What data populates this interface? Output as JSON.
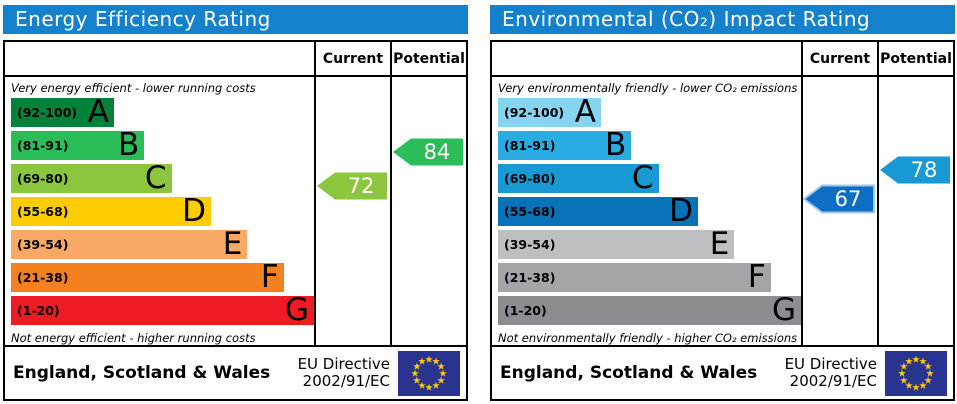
{
  "colors": {
    "header_bg": "#1580cc",
    "flag_bg": "#28348f",
    "flag_star": "#ffcc00",
    "border": "#000000"
  },
  "panels": [
    {
      "title": "Energy Efficiency Rating",
      "header": {
        "current": "Current",
        "potential": "Potential"
      },
      "top_caption": "Very energy efficient - lower running costs",
      "bottom_caption": "Not energy efficient - higher running costs",
      "bands": [
        {
          "letter": "A",
          "range": "(92-100)",
          "min": 92,
          "max": 100,
          "color": "#00823b",
          "width_pct": 34
        },
        {
          "letter": "B",
          "range": "(81-91)",
          "min": 81,
          "max": 91,
          "color": "#2bbe58",
          "width_pct": 44
        },
        {
          "letter": "C",
          "range": "(69-80)",
          "min": 69,
          "max": 80,
          "color": "#8cc63f",
          "width_pct": 53
        },
        {
          "letter": "D",
          "range": "(55-68)",
          "min": 55,
          "max": 68,
          "color": "#ffcc00",
          "width_pct": 66
        },
        {
          "letter": "E",
          "range": "(39-54)",
          "min": 39,
          "max": 54,
          "color": "#f9a966",
          "width_pct": 78
        },
        {
          "letter": "F",
          "range": "(21-38)",
          "min": 21,
          "max": 38,
          "color": "#f4801f",
          "width_pct": 90
        },
        {
          "letter": "G",
          "range": "(1-20)",
          "min": 1,
          "max": 20,
          "color": "#ed1c24",
          "width_pct": 100
        }
      ],
      "current": {
        "value": 72,
        "color": "#8cc63f",
        "border": "none"
      },
      "potential": {
        "value": 84,
        "color": "#2bbe58",
        "border": "none"
      },
      "footer": {
        "region": "England, Scotland & Wales",
        "directive_line1": "EU Directive",
        "directive_line2": "2002/91/EC"
      }
    },
    {
      "title": "Environmental (CO₂) Impact Rating",
      "header": {
        "current": "Current",
        "potential": "Potential"
      },
      "top_caption": "Very environmentally friendly - lower CO₂ emissions",
      "bottom_caption": "Not environmentally friendly - higher CO₂ emissions",
      "bands": [
        {
          "letter": "A",
          "range": "(92-100)",
          "min": 92,
          "max": 100,
          "color": "#86d3f2",
          "width_pct": 34
        },
        {
          "letter": "B",
          "range": "(81-91)",
          "min": 81,
          "max": 91,
          "color": "#2aabe2",
          "width_pct": 44
        },
        {
          "letter": "C",
          "range": "(69-80)",
          "min": 69,
          "max": 80,
          "color": "#1899d4",
          "width_pct": 53
        },
        {
          "letter": "D",
          "range": "(55-68)",
          "min": 55,
          "max": 68,
          "color": "#0872b9",
          "width_pct": 66
        },
        {
          "letter": "E",
          "range": "(39-54)",
          "min": 39,
          "max": 54,
          "color": "#bdbfc1",
          "width_pct": 78
        },
        {
          "letter": "F",
          "range": "(21-38)",
          "min": 21,
          "max": 38,
          "color": "#a3a5a8",
          "width_pct": 90
        },
        {
          "letter": "G",
          "range": "(1-20)",
          "min": 1,
          "max": 20,
          "color": "#8b8d90",
          "width_pct": 100
        }
      ],
      "current": {
        "value": 67,
        "color": "#0d6ec4",
        "border": "#a4c9e8"
      },
      "potential": {
        "value": 78,
        "color": "#1899d4",
        "border": "none"
      },
      "footer": {
        "region": "England, Scotland & Wales",
        "directive_line1": "EU Directive",
        "directive_line2": "2002/91/EC"
      }
    }
  ],
  "chart_data": [
    {
      "type": "bar",
      "title": "Energy Efficiency Rating",
      "categories": [
        "A (92-100)",
        "B (81-91)",
        "C (69-80)",
        "D (55-68)",
        "E (39-54)",
        "F (21-38)",
        "G (1-20)"
      ],
      "series": [
        {
          "name": "band_width_pct",
          "values": [
            34,
            44,
            53,
            66,
            78,
            90,
            100
          ]
        }
      ],
      "current": 72,
      "current_band": "C",
      "potential": 84,
      "potential_band": "B",
      "annotations": [
        "Very energy efficient - lower running costs",
        "Not energy efficient - higher running costs",
        "England, Scotland & Wales",
        "EU Directive 2002/91/EC"
      ],
      "legend_position": "none",
      "grid": false
    },
    {
      "type": "bar",
      "title": "Environmental (CO₂) Impact Rating",
      "categories": [
        "A (92-100)",
        "B (81-91)",
        "C (69-80)",
        "D (55-68)",
        "E (39-54)",
        "F (21-38)",
        "G (1-20)"
      ],
      "series": [
        {
          "name": "band_width_pct",
          "values": [
            34,
            44,
            53,
            66,
            78,
            90,
            100
          ]
        }
      ],
      "current": 67,
      "current_band": "D",
      "potential": 78,
      "potential_band": "C",
      "annotations": [
        "Very environmentally friendly - lower CO₂ emissions",
        "Not environmentally friendly - higher CO₂ emissions",
        "England, Scotland & Wales",
        "EU Directive 2002/91/EC"
      ],
      "legend_position": "none",
      "grid": false
    }
  ]
}
